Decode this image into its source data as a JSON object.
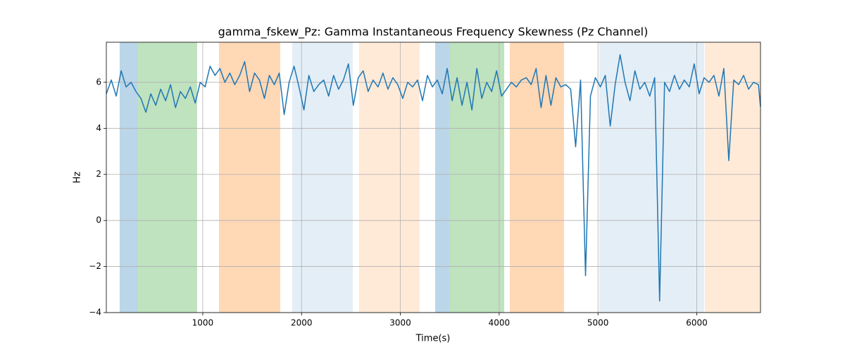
{
  "chart_data": {
    "type": "line",
    "title": "gamma_fskew_Pz: Gamma Instantaneous Frequency Skewness (Pz Channel)",
    "x_label": "Time(s)",
    "y_label": "Hz",
    "xlim": [
      24,
      6645
    ],
    "ylim": [
      -4,
      7.74
    ],
    "xticks": [
      1000,
      2000,
      3000,
      4000,
      5000,
      6000
    ],
    "yticks": [
      {
        "value": -4,
        "label": "−4"
      },
      {
        "value": -2,
        "label": "−2"
      },
      0,
      2,
      4,
      6
    ],
    "grid": true,
    "spans": [
      {
        "start": 159,
        "end": 344,
        "color": "rgba(31,119,180,0.3)"
      },
      {
        "start": 344,
        "end": 943,
        "color": "rgba(44,160,44,0.3)"
      },
      {
        "start": 1164,
        "end": 1784,
        "color": "rgba(255,127,14,0.3)"
      },
      {
        "start": 1905,
        "end": 2518,
        "color": "rgba(31,119,180,0.12)"
      },
      {
        "start": 2582,
        "end": 3195,
        "color": "rgba(255,127,14,0.16)"
      },
      {
        "start": 3352,
        "end": 3495,
        "color": "rgba(31,119,180,0.3)"
      },
      {
        "start": 3495,
        "end": 4051,
        "color": "rgba(44,160,44,0.3)"
      },
      {
        "start": 4108,
        "end": 4656,
        "color": "rgba(255,127,14,0.3)"
      },
      {
        "start": 5013,
        "end": 6075,
        "color": "rgba(31,119,180,0.12)"
      },
      {
        "start": 6082,
        "end": 6645,
        "color": "rgba(255,127,14,0.16)"
      }
    ],
    "series": [
      {
        "color": "#1f77b4",
        "x": [
          24,
          74,
          124,
          174,
          224,
          274,
          324,
          374,
          424,
          474,
          524,
          574,
          624,
          674,
          724,
          774,
          824,
          874,
          924,
          974,
          1024,
          1074,
          1124,
          1174,
          1224,
          1274,
          1324,
          1374,
          1424,
          1474,
          1524,
          1574,
          1624,
          1674,
          1724,
          1774,
          1824,
          1874,
          1924,
          1974,
          2024,
          2074,
          2124,
          2174,
          2224,
          2274,
          2324,
          2374,
          2424,
          2474,
          2524,
          2574,
          2624,
          2674,
          2724,
          2774,
          2824,
          2874,
          2924,
          2974,
          3024,
          3074,
          3124,
          3174,
          3224,
          3274,
          3324,
          3374,
          3424,
          3474,
          3524,
          3574,
          3624,
          3674,
          3724,
          3774,
          3824,
          3874,
          3924,
          3974,
          4024,
          4074,
          4124,
          4174,
          4224,
          4274,
          4324,
          4374,
          4424,
          4474,
          4524,
          4574,
          4624,
          4674,
          4724,
          4774,
          4824,
          4874,
          4924,
          4974,
          5024,
          5074,
          5124,
          5174,
          5224,
          5274,
          5324,
          5374,
          5424,
          5474,
          5524,
          5574,
          5624,
          5674,
          5724,
          5774,
          5824,
          5874,
          5924,
          5974,
          6024,
          6074,
          6124,
          6174,
          6224,
          6274,
          6324,
          6374,
          6424,
          6474,
          6524,
          6574,
          6624,
          6645
        ],
        "values": [
          5.5,
          6.1,
          5.4,
          6.5,
          5.8,
          6.0,
          5.6,
          5.3,
          4.7,
          5.5,
          5.0,
          5.7,
          5.2,
          5.9,
          4.9,
          5.6,
          5.3,
          5.8,
          5.1,
          6.0,
          5.8,
          6.7,
          6.3,
          6.6,
          6.0,
          6.4,
          5.9,
          6.3,
          6.9,
          5.6,
          6.4,
          6.1,
          5.3,
          6.3,
          5.9,
          6.4,
          4.6,
          6.0,
          6.7,
          5.8,
          4.8,
          6.3,
          5.6,
          5.9,
          6.1,
          5.4,
          6.3,
          5.7,
          6.1,
          6.8,
          5.0,
          6.2,
          6.5,
          5.6,
          6.1,
          5.8,
          6.4,
          5.7,
          6.2,
          5.9,
          5.3,
          6.0,
          5.8,
          6.1,
          5.2,
          6.3,
          5.8,
          6.1,
          5.5,
          6.6,
          5.2,
          6.2,
          5.0,
          6.0,
          4.8,
          6.6,
          5.3,
          6.0,
          5.6,
          6.5,
          5.4,
          5.7,
          6.0,
          5.8,
          6.1,
          6.2,
          5.9,
          6.6,
          4.9,
          6.3,
          5.0,
          6.2,
          5.8,
          5.9,
          5.7,
          3.2,
          6.1,
          -2.4,
          5.4,
          6.2,
          5.8,
          6.3,
          4.1,
          5.9,
          7.2,
          6.0,
          5.2,
          6.5,
          5.7,
          6.0,
          5.4,
          6.2,
          -3.5,
          6.0,
          5.6,
          6.3,
          5.7,
          6.1,
          5.8,
          6.8,
          5.5,
          6.2,
          6.0,
          6.3,
          5.4,
          6.6,
          2.6,
          6.1,
          5.9,
          6.3,
          5.7,
          6.0,
          5.9,
          4.95
        ]
      }
    ]
  }
}
